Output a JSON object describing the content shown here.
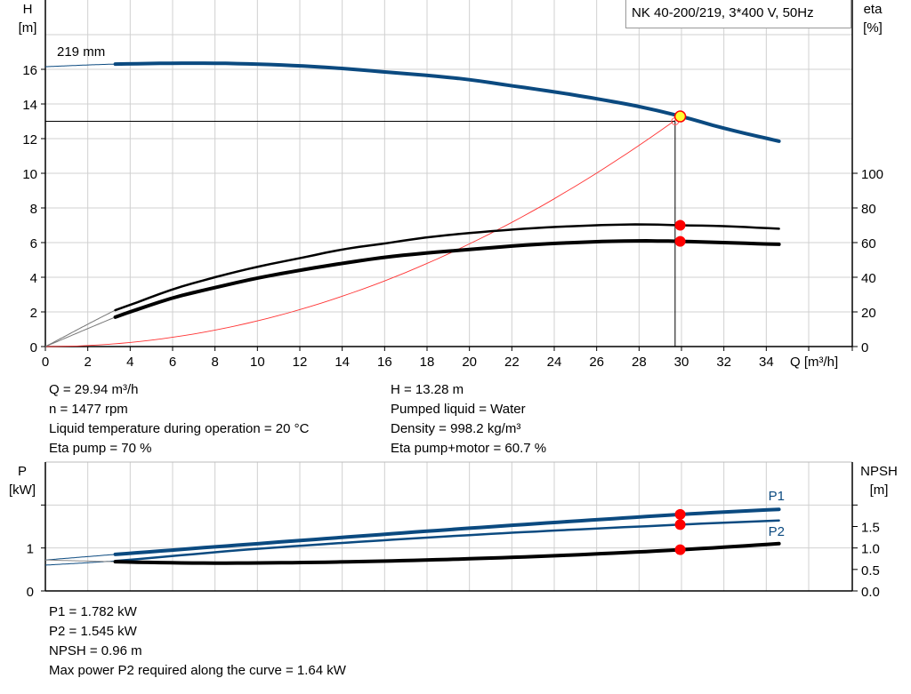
{
  "title": "NK 40-200/219, 3*400 V, 50Hz",
  "colors": {
    "head_curve": "#0b4a80",
    "power_curve": "#0b4a80",
    "efficiency_curve": "#000000",
    "system_curve": "#ff3333",
    "duty_point": "#ff0000",
    "duty_point_fill": "#ffff33",
    "grid": "#d0d0d0"
  },
  "chart_data": [
    {
      "id": "head_efficiency",
      "type": "line",
      "xlabel": "Q [m³/h]",
      "ylabel_left": [
        "H",
        "[m]"
      ],
      "ylabel_right": [
        "eta",
        "[%]"
      ],
      "xlim": [
        0,
        38
      ],
      "ylim_left": [
        0,
        20
      ],
      "ylim_right": [
        0,
        200
      ],
      "grid": true,
      "x_ticks": [
        0,
        2,
        4,
        6,
        8,
        10,
        12,
        14,
        16,
        18,
        20,
        22,
        24,
        26,
        28,
        30,
        32,
        34
      ],
      "y_ticks_left": [
        0,
        2,
        4,
        6,
        8,
        10,
        12,
        14,
        16
      ],
      "y_ticks_right": [
        0,
        20,
        40,
        60,
        80,
        100
      ],
      "annotations": [
        {
          "text": "219 mm"
        }
      ],
      "series": [
        {
          "key": "H",
          "axis": "left",
          "color": "#0b4a80",
          "start_thick": 3.3,
          "x": [
            0,
            2,
            3.3,
            6,
            8,
            10,
            12,
            14,
            16,
            18,
            20,
            22,
            24,
            26,
            28,
            30,
            32,
            34.6
          ],
          "y": [
            16.15,
            16.25,
            16.3,
            16.35,
            16.35,
            16.3,
            16.2,
            16.05,
            15.85,
            15.65,
            15.4,
            15.05,
            14.7,
            14.3,
            13.85,
            13.28,
            12.6,
            11.85
          ]
        },
        {
          "key": "eta_pump",
          "axis": "right",
          "color": "#000000",
          "start_thick": 3.3,
          "x": [
            0,
            3.3,
            4,
            6,
            8,
            10,
            12,
            14,
            16,
            18,
            20,
            22,
            24,
            26,
            28,
            30,
            32,
            34.6
          ],
          "y": [
            0,
            21,
            24,
            33,
            40,
            46,
            51,
            56,
            59.5,
            63,
            65.5,
            67.5,
            69,
            70,
            70.5,
            70,
            69.5,
            68
          ]
        },
        {
          "key": "eta_pump_motor",
          "axis": "right",
          "color": "#000000",
          "start_thick": 3.3,
          "x": [
            0,
            3.3,
            4,
            6,
            8,
            10,
            12,
            14,
            16,
            18,
            20,
            22,
            24,
            26,
            28,
            30,
            32,
            34.6
          ],
          "y": [
            0,
            17,
            20,
            28,
            34,
            39.5,
            44,
            48,
            51.5,
            54,
            56,
            58,
            59.5,
            60.5,
            61,
            60.7,
            60,
            59
          ]
        }
      ],
      "system_curve": {
        "coefficient": 0.01481,
        "x_max": 29.94
      },
      "duty_point": {
        "Q": 29.94,
        "H": 13.28,
        "eta_pump": 70,
        "eta_pump_motor": 60.7
      },
      "requested_point": {
        "Q": 29.7,
        "H": 13.0
      }
    },
    {
      "id": "power_npsh",
      "type": "line",
      "ylabel_left": [
        "P",
        "[kW]"
      ],
      "ylabel_right": [
        "NPSH",
        "[m]"
      ],
      "xlim": [
        0,
        38
      ],
      "ylim_left": [
        0,
        3
      ],
      "ylim_right": [
        0,
        3
      ],
      "grid": true,
      "y_ticks_left": [
        "0",
        "1"
      ],
      "y_ticks_left_values": [
        0,
        1
      ],
      "y_ticks_right": [
        "0.0",
        "0.5",
        "1.0",
        "1.5"
      ],
      "y_ticks_right_values": [
        0,
        0.5,
        1.0,
        1.5
      ],
      "series": [
        {
          "name": "P1",
          "key": "P1",
          "color": "#0b4a80",
          "start_thick": 3.3,
          "x": [
            0,
            3.3,
            10,
            20,
            30,
            34.6
          ],
          "y": [
            0.72,
            0.85,
            1.1,
            1.46,
            1.782,
            1.9
          ]
        },
        {
          "name": "P2",
          "key": "P2",
          "color": "#0b4a80",
          "start_thick": 3.3,
          "x": [
            0,
            3.3,
            10,
            20,
            30,
            34.6
          ],
          "y": [
            0.6,
            0.7,
            0.98,
            1.3,
            1.545,
            1.64
          ]
        },
        {
          "key": "NPSH",
          "color": "#000000",
          "start_thick": 3.3,
          "x": [
            0,
            3.3,
            7,
            12,
            18,
            24,
            30,
            34.6
          ],
          "y": [
            0.72,
            0.68,
            0.65,
            0.66,
            0.72,
            0.82,
            0.96,
            1.1
          ]
        }
      ],
      "duty_point": {
        "Q": 29.94,
        "P1": 1.782,
        "P2": 1.545,
        "NPSH": 0.96
      }
    }
  ],
  "info_top_left": [
    "Q = 29.94 m³/h",
    "n = 1477 rpm",
    "Liquid temperature during operation = 20 °C",
    "Eta pump = 70 %"
  ],
  "info_top_right": [
    "H = 13.28 m",
    "Pumped liquid = Water",
    "Density = 998.2 kg/m³",
    "Eta pump+motor = 60.7 %"
  ],
  "info_bottom": [
    "P1 = 1.782 kW",
    "P2 = 1.545 kW",
    "NPSH = 0.96 m",
    "Max power P2 required along the curve = 1.64 kW"
  ]
}
